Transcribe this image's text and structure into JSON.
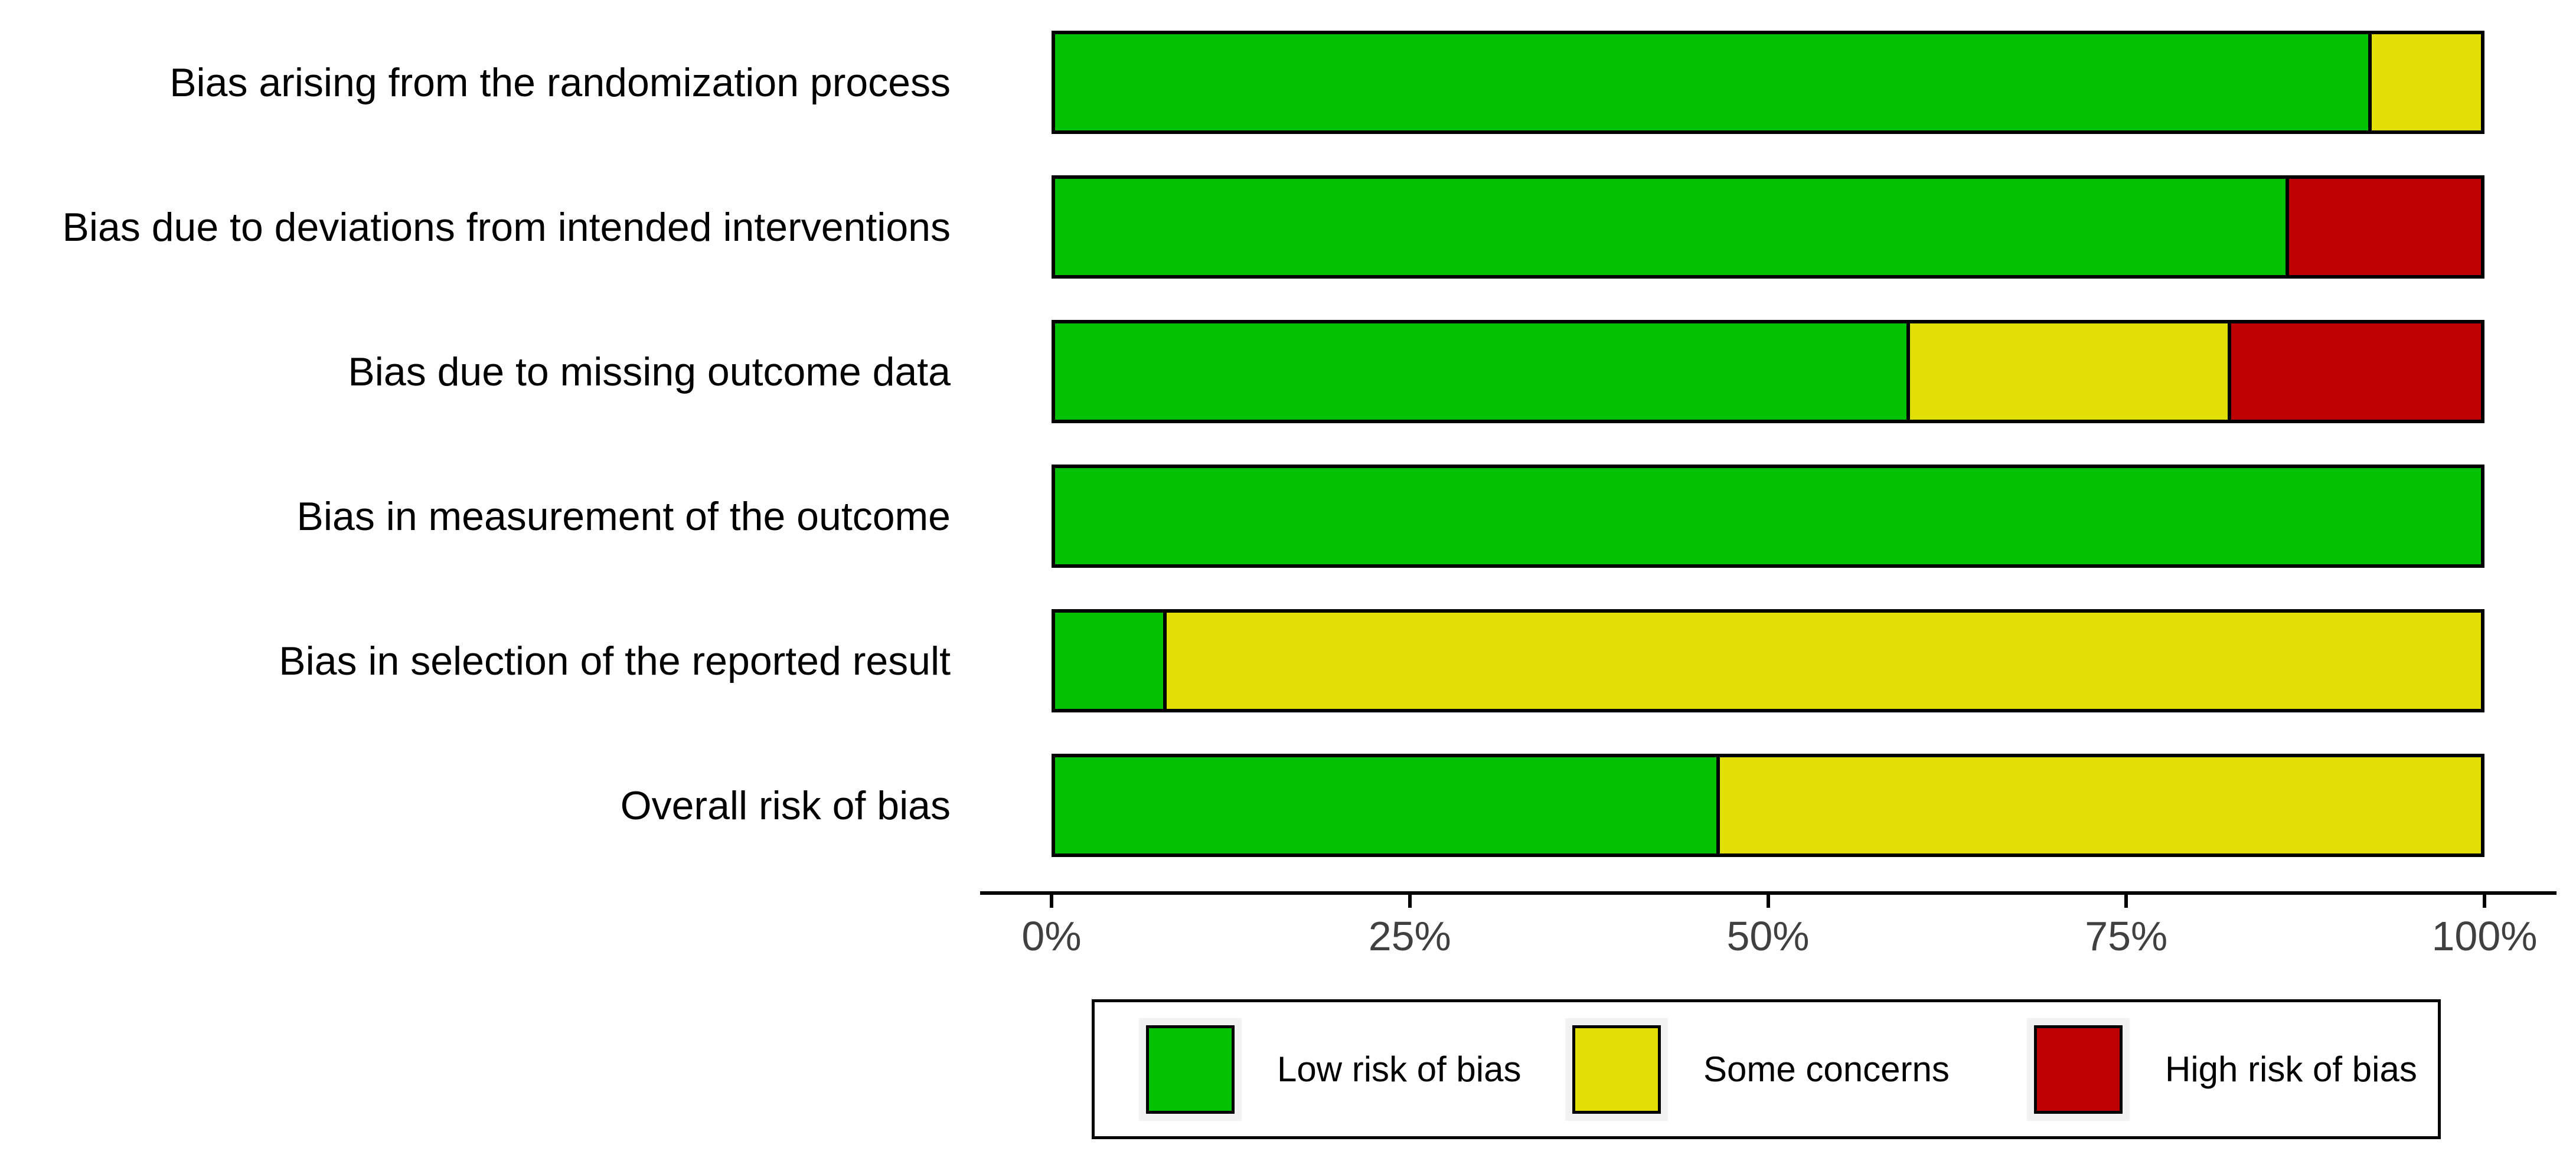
{
  "chart_data": {
    "type": "bar",
    "variant": "horizontal-stacked-percent",
    "title": "",
    "categories": [
      "Bias arising from the randomization process",
      "Bias due to deviations from intended interventions",
      "Bias due to missing outcome data",
      "Bias in measurement of the outcome",
      "Bias in selection of the reported result",
      "Overall risk of bias"
    ],
    "series": [
      {
        "name": "Low risk of bias",
        "color": "#02C100",
        "values": [
          92.3,
          86.5,
          60.0,
          100.0,
          7.6,
          46.5
        ]
      },
      {
        "name": "Some concerns",
        "color": "#E2DF07",
        "values": [
          7.7,
          0.0,
          22.4,
          0.0,
          92.4,
          53.5
        ]
      },
      {
        "name": "High risk of bias",
        "color": "#BF0000",
        "values": [
          0.0,
          13.5,
          17.6,
          0.0,
          0.0,
          0.0
        ]
      }
    ],
    "x_axis": {
      "min": 0,
      "max": 100,
      "tick_values": [
        0,
        25,
        50,
        75,
        100
      ],
      "tick_labels": [
        "0%",
        "25%",
        "50%",
        "75%",
        "100%"
      ]
    },
    "legend": {
      "position": "bottom",
      "entries": [
        "Low risk of bias",
        "Some concerns",
        "High risk of bias"
      ]
    },
    "grid": false,
    "colors": {
      "bar_border": "#000000",
      "axis_line": "#000000",
      "tick_text": "#404040",
      "label_text": "#000000",
      "background": "#FFFFFF"
    }
  }
}
